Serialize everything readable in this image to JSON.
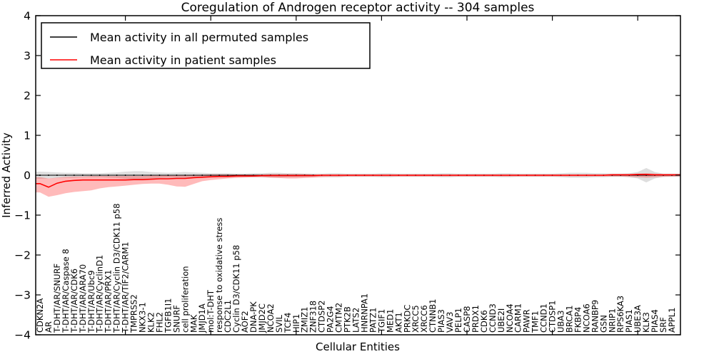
{
  "figure": {
    "title": "Coregulation of Androgen receptor activity -- 304 samples",
    "xlabel": "Cellular Entities",
    "ylabel": "Inferred Activity"
  },
  "legend": {
    "entries": [
      {
        "label": "Mean activity in all permuted samples",
        "color": "#000000"
      },
      {
        "label": "Mean activity in patient samples",
        "color": "#ff0000"
      }
    ]
  },
  "chart_data": {
    "type": "line",
    "title": "Coregulation of Androgen receptor activity -- 304 samples",
    "xlabel": "Cellular Entities",
    "ylabel": "Inferred Activity",
    "ylim": [
      -4,
      4
    ],
    "yticks": [
      -4,
      -3,
      -2,
      -1,
      0,
      1,
      2,
      3,
      4
    ],
    "grid": false,
    "legend_position": "upper left",
    "categories": [
      "CDKN2A",
      "AR",
      "T-DHT/AR/SNURF",
      "T-DHT/AR/Caspase 8",
      "T-DHT/AR/CDK6",
      "T-DHT/AR/ARA70",
      "T-DHT/AR/Ubc9",
      "T-DHT/AR/CyclinD1",
      "T-DHT/AR/PRX1",
      "T-DHT/AR/Cyclin D3/CDK11 p58",
      "T-DHT/AR/TIF2/CARM1",
      "TMPRSS2",
      "NKX3-1",
      "KLK2",
      "FHL2",
      "TGFB1I1",
      "SNURF",
      "cell proliferation",
      "MAK",
      "JMJD1A",
      "mol:T-DHT",
      "response to oxidative stress",
      "CDC2L1",
      "Cyclin D3/CDK11 p58",
      "AOF2",
      "DNA-PK",
      "JMJD2C",
      "NCOA2",
      "SVIL",
      "TCF4",
      "HIP1",
      "ZMIZ1",
      "ZNF318",
      "CTDSP2",
      "PA2G4",
      "CMTM2",
      "PTK2B",
      "LATS2",
      "HNRNPA1",
      "PATZ1",
      "TGIF1",
      "MED1",
      "AKT1",
      "PRKDC",
      "XRCC5",
      "XRCC6",
      "CTNNB1",
      "PIAS3",
      "VAV3",
      "PELP1",
      "CASP8",
      "PRDX1",
      "CDK6",
      "CCND3",
      "UBE2I",
      "NCOA4",
      "CARM1",
      "PAWR",
      "TMF1",
      "CCND1",
      "CTDSP1",
      "UBA3",
      "BRCA1",
      "FKBP4",
      "NCOA6",
      "RANBP9",
      "GSN",
      "NRIP1",
      "RPS6KA3",
      "PIAS1",
      "UBE3A",
      "KLK3",
      "PIAS4",
      "SRF",
      "APPL1"
    ],
    "series": [
      {
        "name": "Mean activity in all permuted samples",
        "color": "#000000",
        "band_color": "#999999",
        "band_opacity": 0.32,
        "values": [
          0,
          0,
          0,
          0,
          0,
          0,
          0,
          0,
          0,
          0,
          0,
          0,
          0,
          0,
          0,
          0,
          0,
          0,
          0,
          0,
          0,
          0,
          0,
          0,
          0,
          0,
          0,
          0,
          0,
          0,
          0,
          0,
          0,
          0,
          0,
          0,
          0,
          0,
          0,
          0,
          0,
          0,
          0,
          0,
          0,
          0,
          0,
          0,
          0,
          0,
          0,
          0,
          0,
          0,
          0,
          0,
          0,
          0,
          0,
          0,
          0,
          0,
          0,
          0,
          0,
          0,
          0,
          0,
          0,
          0,
          0,
          0,
          0,
          0,
          0
        ],
        "band_upper": [
          0.09,
          0.08,
          0.07,
          0.06,
          0.06,
          0.05,
          0.05,
          0.05,
          0.06,
          0.07,
          0.09,
          0.1,
          0.1,
          0.08,
          0.07,
          0.06,
          0.07,
          0.08,
          0.07,
          0.06,
          0.05,
          0.05,
          0.05,
          0.04,
          0.04,
          0.05,
          0.05,
          0.06,
          0.06,
          0.05,
          0.05,
          0.04,
          0.04,
          0.04,
          0.05,
          0.05,
          0.04,
          0.04,
          0.04,
          0.04,
          0.05,
          0.05,
          0.04,
          0.04,
          0.04,
          0.04,
          0.04,
          0.05,
          0.05,
          0.04,
          0.04,
          0.04,
          0.04,
          0.04,
          0.05,
          0.05,
          0.04,
          0.04,
          0.04,
          0.04,
          0.04,
          0.05,
          0.06,
          0.06,
          0.06,
          0.05,
          0.05,
          0.04,
          0.04,
          0.05,
          0.08,
          0.18,
          0.08,
          0.04,
          0.04
        ],
        "band_lower": [
          -0.09,
          -0.08,
          -0.07,
          -0.06,
          -0.06,
          -0.05,
          -0.05,
          -0.05,
          -0.06,
          -0.07,
          -0.09,
          -0.1,
          -0.1,
          -0.08,
          -0.07,
          -0.06,
          -0.07,
          -0.08,
          -0.07,
          -0.06,
          -0.05,
          -0.05,
          -0.05,
          -0.04,
          -0.04,
          -0.05,
          -0.05,
          -0.06,
          -0.06,
          -0.05,
          -0.05,
          -0.04,
          -0.04,
          -0.04,
          -0.05,
          -0.05,
          -0.04,
          -0.04,
          -0.04,
          -0.04,
          -0.05,
          -0.05,
          -0.04,
          -0.04,
          -0.04,
          -0.04,
          -0.04,
          -0.05,
          -0.05,
          -0.04,
          -0.04,
          -0.04,
          -0.04,
          -0.04,
          -0.05,
          -0.05,
          -0.04,
          -0.04,
          -0.04,
          -0.04,
          -0.04,
          -0.05,
          -0.06,
          -0.06,
          -0.06,
          -0.05,
          -0.05,
          -0.04,
          -0.04,
          -0.05,
          -0.08,
          -0.18,
          -0.08,
          -0.04,
          -0.04
        ]
      },
      {
        "name": "Mean activity in patient samples",
        "color": "#ff0000",
        "band_color": "#ff0000",
        "band_opacity": 0.27,
        "values": [
          -0.21,
          -0.3,
          -0.2,
          -0.15,
          -0.13,
          -0.12,
          -0.12,
          -0.12,
          -0.12,
          -0.12,
          -0.12,
          -0.11,
          -0.11,
          -0.1,
          -0.09,
          -0.09,
          -0.08,
          -0.08,
          -0.06,
          -0.05,
          -0.04,
          -0.03,
          -0.03,
          -0.02,
          -0.02,
          -0.02,
          -0.01,
          -0.01,
          -0.01,
          -0.01,
          -0.01,
          -0.01,
          -0.01,
          0,
          0,
          0,
          0,
          0,
          0,
          0,
          0,
          0,
          0,
          0,
          0,
          0,
          0,
          0,
          0,
          0,
          0,
          0,
          0,
          0,
          0,
          0,
          0,
          0,
          0,
          0,
          0,
          0,
          0,
          0,
          0,
          0,
          0,
          0.01,
          0.01,
          0.01,
          0.02,
          0.02,
          0.01,
          0.01,
          0.01
        ],
        "band_upper": [
          -0.05,
          -0.08,
          -0.06,
          -0.04,
          -0.03,
          -0.03,
          -0.02,
          -0.02,
          -0.02,
          -0.02,
          -0.02,
          -0.02,
          -0.02,
          -0.01,
          -0.01,
          -0.01,
          -0.01,
          0,
          0.01,
          0.01,
          0.02,
          0.02,
          0.02,
          0.02,
          0.02,
          0.02,
          0.02,
          0.03,
          0.03,
          0.03,
          0.03,
          0.03,
          0.02,
          0.02,
          0.02,
          0.02,
          0.02,
          0.02,
          0.02,
          0.02,
          0.02,
          0.02,
          0.02,
          0.02,
          0.02,
          0.02,
          0.02,
          0.02,
          0.02,
          0.02,
          0.02,
          0.02,
          0.02,
          0.02,
          0.02,
          0.02,
          0.02,
          0.02,
          0.02,
          0.02,
          0.02,
          0.02,
          0.02,
          0.02,
          0.02,
          0.02,
          0.02,
          0.03,
          0.03,
          0.03,
          0.04,
          0.05,
          0.04,
          0.03,
          0.03
        ],
        "band_lower": [
          -0.43,
          -0.54,
          -0.5,
          -0.45,
          -0.42,
          -0.4,
          -0.38,
          -0.33,
          -0.3,
          -0.28,
          -0.26,
          -0.24,
          -0.22,
          -0.21,
          -0.21,
          -0.24,
          -0.28,
          -0.29,
          -0.22,
          -0.15,
          -0.12,
          -0.1,
          -0.08,
          -0.07,
          -0.06,
          -0.05,
          -0.05,
          -0.06,
          -0.07,
          -0.08,
          -0.08,
          -0.07,
          -0.06,
          -0.05,
          -0.04,
          -0.04,
          -0.03,
          -0.03,
          -0.03,
          -0.03,
          -0.03,
          -0.03,
          -0.03,
          -0.03,
          -0.03,
          -0.03,
          -0.03,
          -0.03,
          -0.03,
          -0.03,
          -0.03,
          -0.03,
          -0.03,
          -0.03,
          -0.03,
          -0.03,
          -0.03,
          -0.03,
          -0.03,
          -0.03,
          -0.03,
          -0.03,
          -0.03,
          -0.03,
          -0.03,
          -0.03,
          -0.03,
          -0.03,
          -0.03,
          -0.04,
          -0.05,
          -0.06,
          -0.05,
          -0.04,
          -0.03
        ]
      }
    ]
  }
}
